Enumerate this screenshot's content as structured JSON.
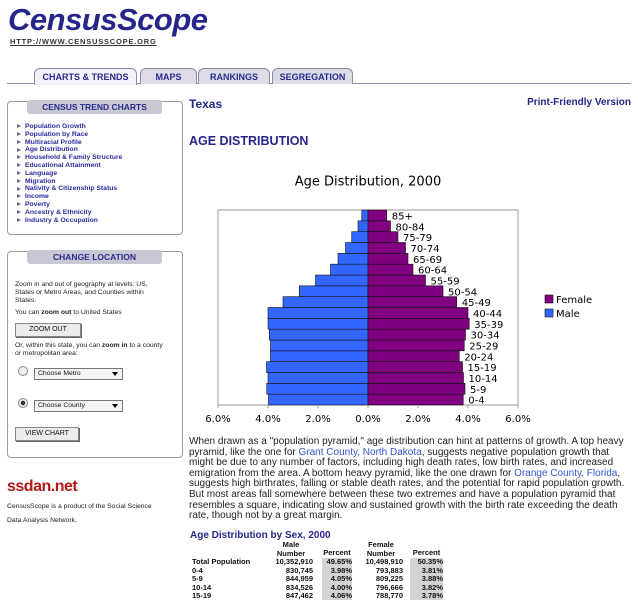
{
  "header": {
    "logo": "CensusScope",
    "url": "HTTP://WWW.CENSUSSCOPE.ORG"
  },
  "tabs": [
    "CHARTS & TRENDS",
    "MAPS",
    "RANKINGS",
    "SEGREGATION"
  ],
  "sidebar": {
    "trend_title": "CENSUS TREND CHARTS",
    "trend_links": [
      "Population Growth",
      "Population by Race",
      "Multiracial Profile",
      "Age Distribution",
      "Household & Family Structure",
      "Educational Attainment",
      "Language",
      "Migration",
      "Nativity & Citizenship Status",
      "Income",
      "Poverty",
      "Ancestry & Ethnicity",
      "Industry & Occupation"
    ],
    "location_title": "CHANGE LOCATION",
    "intro": "Zoom in and out of geography at levels: US, States or Metro Areas, and Counties within States.",
    "zoom_out_text": [
      "You can ",
      "zoom out",
      " to United States"
    ],
    "zoom_out_button": "ZOOM OUT",
    "zoom_in_text": [
      "Or, within this state, you can ",
      "zoom in",
      " to a county or metropolitan area:"
    ],
    "metro_select": "Choose Metro",
    "county_select": "Choose County",
    "view_button": "VIEW CHART",
    "network_logo": "ssdan.net",
    "network_text": "CensusScope is a product of the Social Science Data Analysis Network."
  },
  "main": {
    "place": "Texas",
    "print_link": "Print-Friendly Version",
    "heading": "AGE DISTRIBUTION",
    "paragraph": [
      "When drawn as a \"population pyramid,\" age distribution can hint at patterns of growth. A top heavy pyramid, like the one for ",
      "Grant County, North Dakota",
      ", suggests negative population growth that might be due to any number of factors, including high death rates, low birth rates, and increased emigration from the area. A bottom heavy pyramid, like the one drawn for ",
      "Orange County, Florida",
      ", suggests high birthrates, falling or stable death rates, and the potential for rapid population growth. But most areas fall somewhere between these two extremes and have a population pyramid that resembles a square, indicating slow and sustained growth with the birth rate exceeding the death rate, though not by a great margin."
    ],
    "table": {
      "title": "Age Distribution by Sex, 2000",
      "headers": [
        "Male Number",
        "Percent",
        "Female Number",
        "Percent"
      ],
      "rows": [
        [
          "Total Population",
          "10,352,910",
          "49.65%",
          "10,498,910",
          "50.35%"
        ],
        [
          "0-4",
          "830,745",
          "3.98%",
          "793,883",
          "3.81%"
        ],
        [
          "5-9",
          "844,959",
          "4.05%",
          "809,225",
          "3.88%"
        ],
        [
          "10-14",
          "834,526",
          "4.00%",
          "796,666",
          "3.82%"
        ],
        [
          "15-19",
          "847,462",
          "4.06%",
          "788,770",
          "3.78%"
        ]
      ]
    }
  },
  "chart_data": {
    "type": "pyramid",
    "title": "Age Distribution, 2000",
    "categories": [
      "0-4",
      "5-9",
      "10-14",
      "15-19",
      "20-24",
      "25-29",
      "30-34",
      "35-39",
      "40-44",
      "45-49",
      "50-54",
      "55-59",
      "60-64",
      "65-69",
      "70-74",
      "75-79",
      "80-84",
      "85+"
    ],
    "series": [
      {
        "name": "Male",
        "color": "#3366ff",
        "values": [
          3.98,
          4.05,
          4.0,
          4.06,
          3.9,
          3.9,
          3.95,
          4.0,
          4.0,
          3.4,
          2.75,
          2.1,
          1.5,
          1.2,
          0.9,
          0.65,
          0.4,
          0.25
        ]
      },
      {
        "name": "Female",
        "color": "#800080",
        "values": [
          3.81,
          3.88,
          3.82,
          3.78,
          3.65,
          3.85,
          3.9,
          4.05,
          4.0,
          3.55,
          3.0,
          2.3,
          1.8,
          1.6,
          1.5,
          1.2,
          0.9,
          0.75
        ]
      }
    ],
    "legend_order": [
      "Female",
      "Male"
    ],
    "xlim": [
      0,
      6
    ],
    "xticks_male": [
      {
        "value": 6,
        "label": "6.0%"
      },
      {
        "value": 4,
        "label": "4.0%"
      },
      {
        "value": 2,
        "label": "2.0%"
      },
      {
        "value": 0,
        "label": "0.0%"
      }
    ],
    "xticks_female": [
      {
        "value": 2,
        "label": "2.0%"
      },
      {
        "value": 4,
        "label": "4.0%"
      },
      {
        "value": 6,
        "label": "6.0%"
      }
    ],
    "legend": "right"
  }
}
